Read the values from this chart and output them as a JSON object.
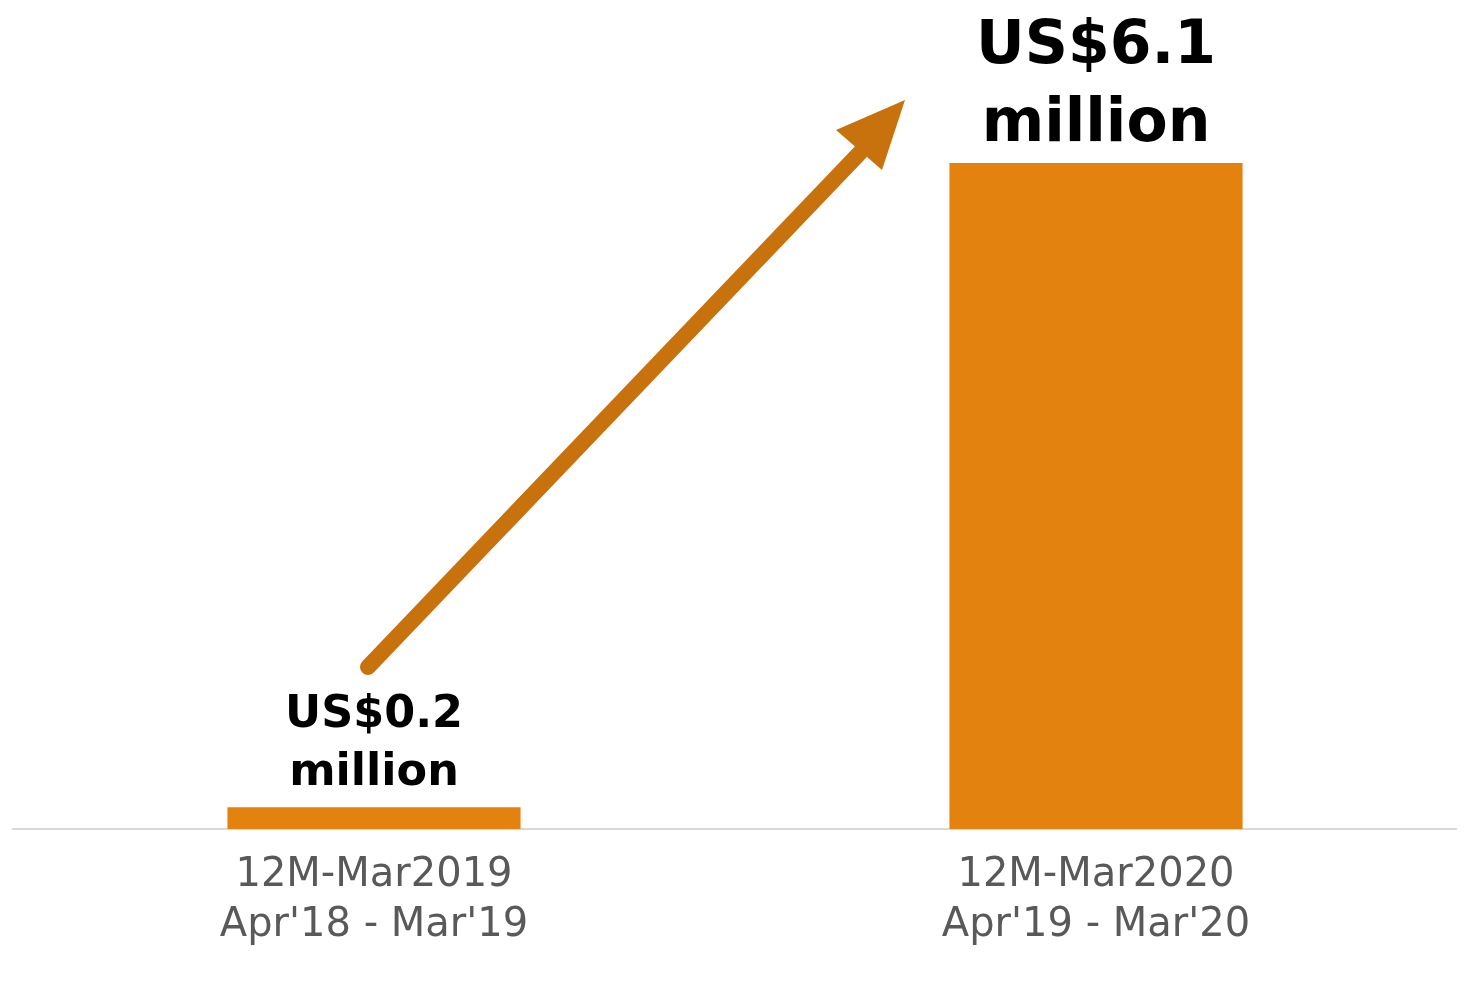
{
  "chart_data": {
    "type": "bar",
    "categories": [
      "12M-Mar2019\nApr'18 - Mar'19",
      "12M-Mar2020\nApr'19 - Mar'20"
    ],
    "values": [
      0.2,
      6.1
    ],
    "color": "#e3820f",
    "value_labels": [
      "US$0.2\nmillion",
      "US$6.1\nmillion"
    ],
    "grid": false,
    "legend": false
  }
}
